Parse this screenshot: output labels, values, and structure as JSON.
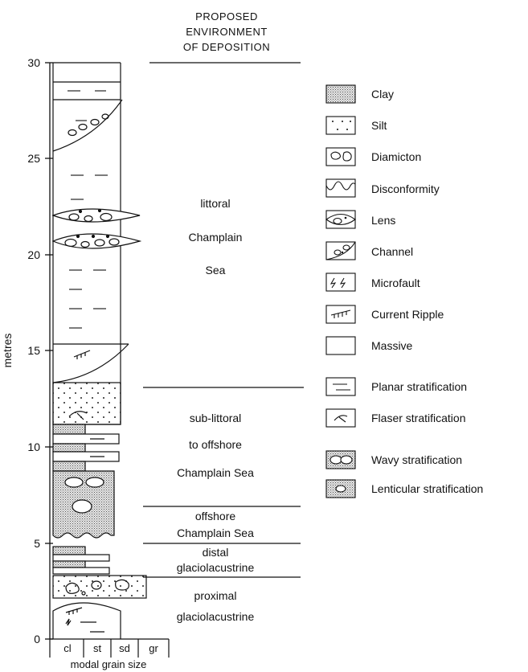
{
  "header": {
    "title_lines": [
      "PROPOSED",
      "ENVIRONMENT",
      "OF DEPOSITION"
    ]
  },
  "axis": {
    "ylabel": "metres",
    "ticks": [
      "0",
      "5",
      "10",
      "15",
      "20",
      "25",
      "30"
    ],
    "grain_size_classes": [
      "cl",
      "st",
      "sd",
      "gr"
    ],
    "xlabel": "modal grain size"
  },
  "environments": [
    {
      "lines": [
        "littoral",
        "Champlain",
        "Sea"
      ]
    },
    {
      "lines": [
        "sub-littoral",
        "to offshore",
        "Champlain Sea"
      ]
    },
    {
      "lines": [
        "offshore",
        "Champlain Sea"
      ]
    },
    {
      "lines": [
        "distal",
        "glaciolacustrine"
      ]
    },
    {
      "lines": [
        "proximal",
        "glaciolacustrine"
      ]
    }
  ],
  "legend": [
    {
      "icon": "clay-icon",
      "label": "Clay"
    },
    {
      "icon": "silt-icon",
      "label": "Silt"
    },
    {
      "icon": "diamicton-icon",
      "label": "Diamicton"
    },
    {
      "icon": "disconformity-icon",
      "label": "Disconformity"
    },
    {
      "icon": "lens-icon",
      "label": "Lens"
    },
    {
      "icon": "channel-icon",
      "label": "Channel"
    },
    {
      "icon": "microfault-icon",
      "label": "Microfault"
    },
    {
      "icon": "current-ripple-icon",
      "label": "Current Ripple"
    },
    {
      "icon": "massive-icon",
      "label": "Massive"
    },
    {
      "icon": "planar-stratification-icon",
      "label": "Planar stratification"
    },
    {
      "icon": "flaser-stratification-icon",
      "label": "Flaser stratification"
    },
    {
      "icon": "wavy-stratification-icon",
      "label": "Wavy stratification"
    },
    {
      "icon": "lenticular-stratification-icon",
      "label": "Lenticular stratification"
    }
  ]
}
